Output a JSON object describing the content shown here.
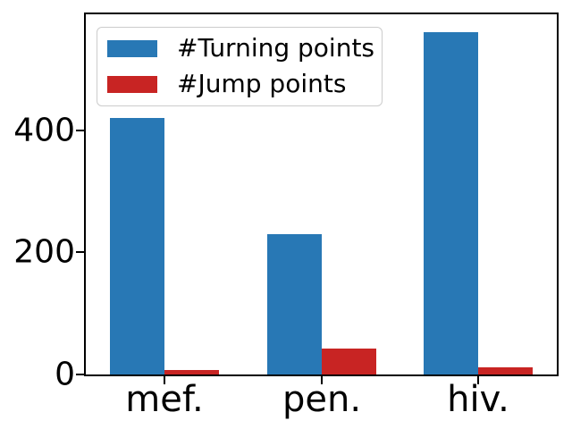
{
  "chart_data": {
    "type": "bar",
    "title": "",
    "xlabel": "",
    "ylabel": "",
    "categories": [
      "mef.",
      "pen.",
      "hiv."
    ],
    "series": [
      {
        "name": "#Turning points",
        "color": "#2878b5",
        "values": [
          420,
          230,
          560
        ]
      },
      {
        "name": "#Jump points",
        "color": "#c82423",
        "values": [
          8,
          43,
          12
        ]
      }
    ],
    "yticks": [
      0,
      200,
      400
    ],
    "ylim": [
      0,
      590
    ],
    "xlim": [
      -0.5,
      2.5
    ],
    "bar_width_ratio": 0.35,
    "grid": false,
    "legend_position": "upper left"
  },
  "colors": {
    "axis": "#000000",
    "background": "#ffffff",
    "legend_border": "#cccccc",
    "blue": "#2878b5",
    "red": "#c82423"
  }
}
